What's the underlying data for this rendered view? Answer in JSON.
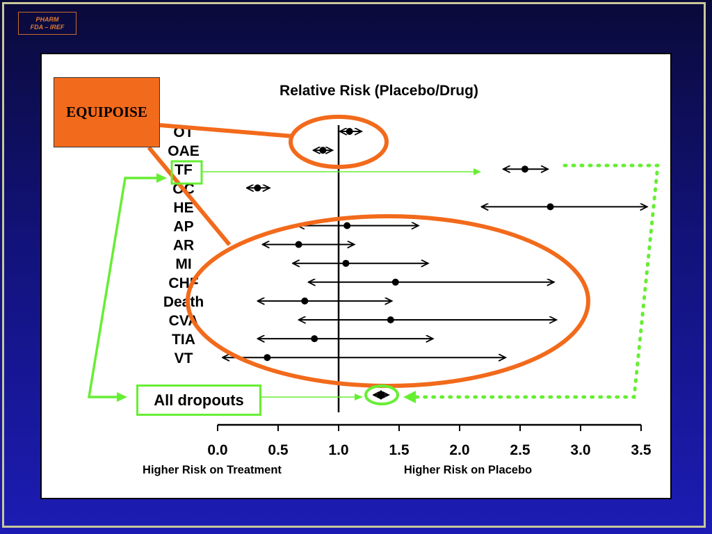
{
  "logo": {
    "line1": "PHARM",
    "line2": "FDA – IREF"
  },
  "callouts": {
    "equipoise": "EQUIPOISE",
    "all_dropouts": "All dropouts"
  },
  "colors": {
    "highlight_orange": "#f26a1b",
    "highlight_green": "#66ee33"
  },
  "chart_data": {
    "type": "forest",
    "title": "Relative Risk (Placebo/Drug)",
    "x_ticks": [
      "0.0",
      "0.5",
      "1.0",
      "1.5",
      "2.0",
      "2.5",
      "3.0",
      "3.5"
    ],
    "xlim": [
      0,
      3.5
    ],
    "reference_line": 1.0,
    "axis_notes": {
      "left": "Higher Risk on Treatment",
      "right": "Higher Risk on Placebo"
    },
    "rows": [
      {
        "label": "OT",
        "estimate": 1.09,
        "lower": 1.01,
        "upper": 1.19
      },
      {
        "label": "OAE",
        "estimate": 0.87,
        "lower": 0.79,
        "upper": 0.95
      },
      {
        "label": "TF",
        "estimate": 2.54,
        "lower": 2.36,
        "upper": 2.73
      },
      {
        "label": "OC",
        "estimate": 0.33,
        "lower": 0.24,
        "upper": 0.43
      },
      {
        "label": "HE",
        "estimate": 2.75,
        "lower": 2.18,
        "upper": 3.55
      },
      {
        "label": "AP",
        "estimate": 1.07,
        "lower": 0.66,
        "upper": 1.66
      },
      {
        "label": "AR",
        "estimate": 0.67,
        "lower": 0.37,
        "upper": 1.13
      },
      {
        "label": "MI",
        "estimate": 1.06,
        "lower": 0.62,
        "upper": 1.74
      },
      {
        "label": "CHF",
        "estimate": 1.47,
        "lower": 0.75,
        "upper": 2.78
      },
      {
        "label": "Death",
        "estimate": 0.72,
        "lower": 0.33,
        "upper": 1.44
      },
      {
        "label": "CVA",
        "estimate": 1.43,
        "lower": 0.67,
        "upper": 2.8
      },
      {
        "label": "TIA",
        "estimate": 0.8,
        "lower": 0.33,
        "upper": 1.78
      },
      {
        "label": "VT",
        "estimate": 0.41,
        "lower": 0.04,
        "upper": 2.38
      }
    ],
    "summary": {
      "label": "All dropouts",
      "estimate": 1.35,
      "lower": 1.31,
      "upper": 1.39
    }
  }
}
